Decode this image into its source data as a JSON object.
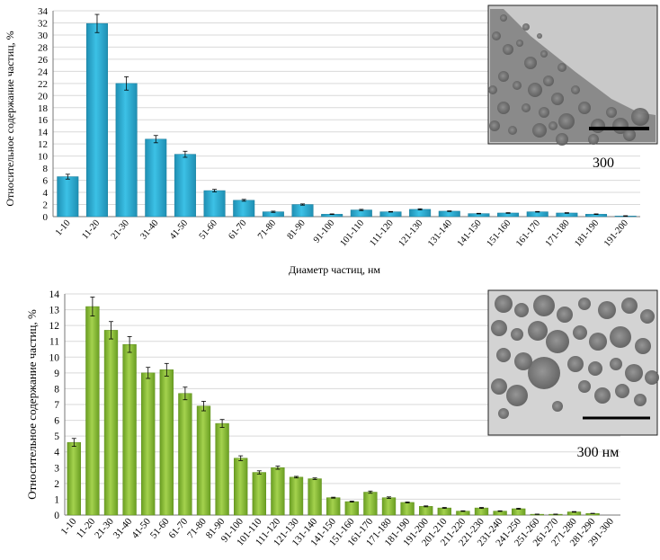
{
  "chart_data": [
    {
      "type": "bar",
      "categories": [
        "1-10",
        "11-20",
        "21-30",
        "31-40",
        "41-50",
        "51-60",
        "61-70",
        "71-80",
        "81-90",
        "91-100",
        "101-110",
        "111-120",
        "121-130",
        "131-140",
        "141-150",
        "151-160",
        "161-170",
        "171-180",
        "181-190",
        "191-200"
      ],
      "values": [
        6.6,
        31.9,
        22.0,
        12.8,
        10.3,
        4.3,
        2.7,
        0.8,
        2.0,
        0.4,
        1.1,
        0.8,
        1.2,
        0.9,
        0.5,
        0.6,
        0.8,
        0.6,
        0.4,
        0.1
      ],
      "errors": [
        0.4,
        1.5,
        1.1,
        0.6,
        0.5,
        0.2,
        0.15,
        0.1,
        0.1,
        0.05,
        0.1,
        0.05,
        0.1,
        0.05,
        0.05,
        0.05,
        0.05,
        0.05,
        0.05,
        0.05
      ],
      "title": "",
      "xlabel": "Диаметр частиц, нм",
      "ylabel": "Относительное содержание частиц, %",
      "ylim": [
        0,
        34
      ],
      "ytick_step": 2,
      "grid": true,
      "bar_color": "#2aaed4",
      "inset": {
        "label": "300",
        "description": "TEM micrograph"
      }
    },
    {
      "type": "bar",
      "categories": [
        "1-10",
        "11-20",
        "21-30",
        "31-40",
        "41-50",
        "51-60",
        "61-70",
        "71-80",
        "81-90",
        "91-100",
        "101-110",
        "111-120",
        "121-130",
        "131-140",
        "141-150",
        "151-160",
        "161-170",
        "171-180",
        "181-190",
        "191-200",
        "201-210",
        "211-220",
        "221-230",
        "231-240",
        "241-250",
        "251-260",
        "261-270",
        "271-280",
        "281-290",
        "291-300"
      ],
      "values": [
        4.6,
        13.2,
        11.7,
        10.8,
        9.0,
        9.2,
        7.7,
        6.9,
        5.8,
        3.6,
        2.7,
        3.0,
        2.4,
        2.3,
        1.1,
        0.85,
        1.45,
        1.1,
        0.8,
        0.55,
        0.45,
        0.25,
        0.45,
        0.25,
        0.4,
        0.05,
        0.05,
        0.2,
        0.1,
        0.0
      ],
      "errors": [
        0.25,
        0.6,
        0.55,
        0.5,
        0.35,
        0.4,
        0.4,
        0.3,
        0.25,
        0.15,
        0.1,
        0.1,
        0.05,
        0.05,
        0.03,
        0.03,
        0.07,
        0.05,
        0.03,
        0.03,
        0.03,
        0.02,
        0.03,
        0.02,
        0.03,
        0.01,
        0.01,
        0.02,
        0.01,
        0.0
      ],
      "title": "",
      "xlabel": "",
      "ylabel": "Относительное содержание частиц, %",
      "ylim": [
        0,
        14
      ],
      "ytick_step": 1,
      "grid": true,
      "bar_color": "#8dc03a",
      "inset": {
        "label": "300 нм",
        "description": "TEM micrograph"
      }
    }
  ]
}
